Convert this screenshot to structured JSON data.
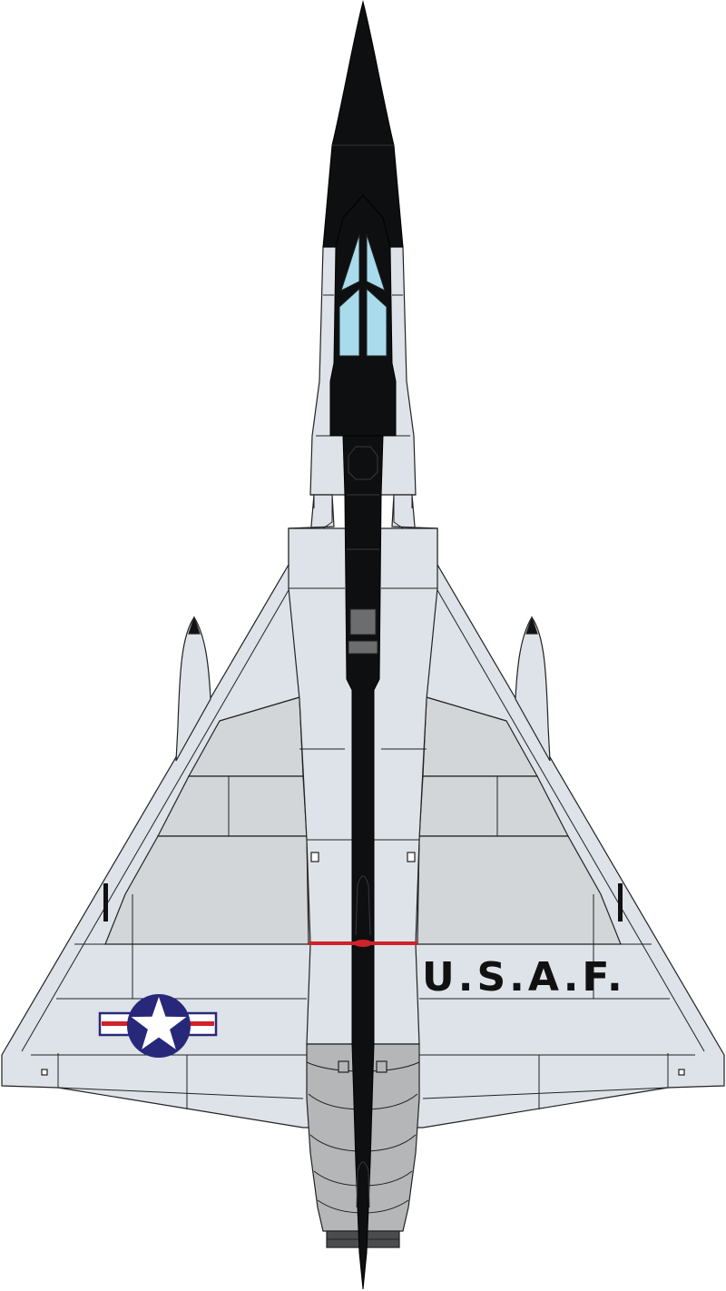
{
  "wing_marking": {
    "text": "U.S.A.F."
  },
  "roundel": {
    "type": "usaf-star-and-bar"
  },
  "colors": {
    "fuselage_spine": "#0d0f10",
    "wing_light": "#dde3e8",
    "wing_mid": "#d3d6d8",
    "exhaust_section": "#b4b6b8",
    "canopy": "#a8dcec",
    "roundel_blue": "#28287a",
    "roundel_red": "#d0222a",
    "marking_text": "#111111"
  }
}
